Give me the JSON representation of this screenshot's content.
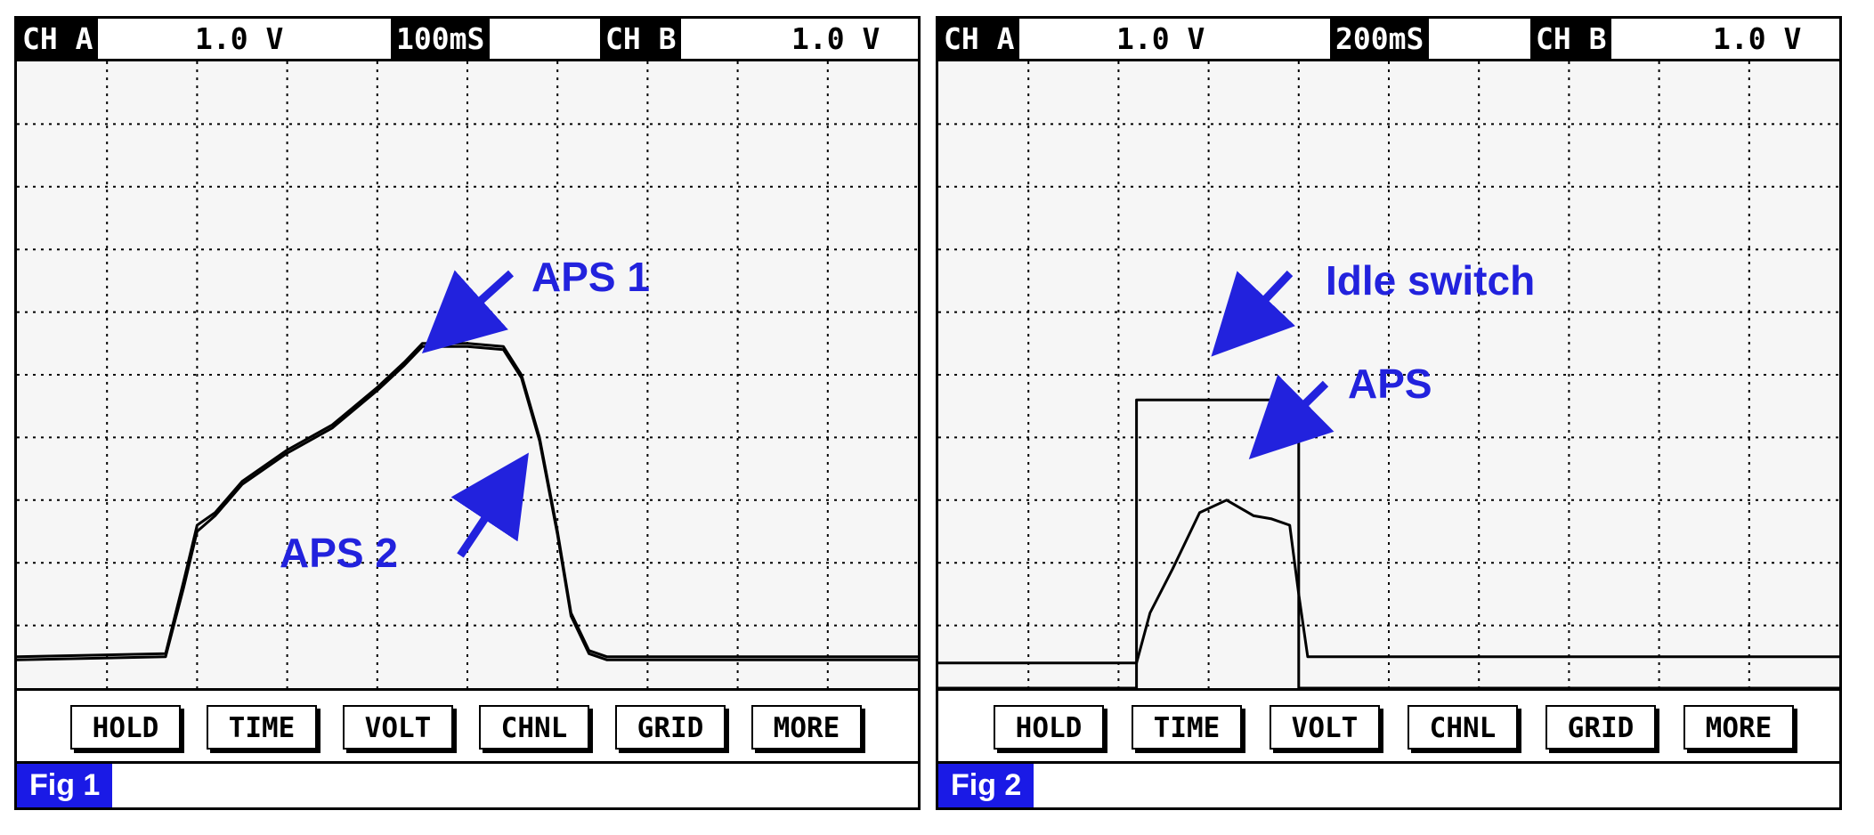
{
  "colors": {
    "annotation": "#2222dd",
    "trace": "#000000",
    "fig_label_bg": "#1a1ae6",
    "grid": "#000000"
  },
  "panels": [
    {
      "header": {
        "ch_a": "CH A",
        "ch_a_scale": "1.0 V",
        "timebase": "100mS",
        "ch_b": "CH B",
        "ch_b_scale": "1.0 V"
      },
      "buttons": [
        "HOLD",
        "TIME",
        "VOLT",
        "CHNL",
        "GRID",
        "MORE"
      ],
      "fig_label": "Fig 1",
      "annotations": {
        "a": "APS 1",
        "b": "APS 2"
      }
    },
    {
      "header": {
        "ch_a": "CH A",
        "ch_a_scale": "1.0 V",
        "timebase": "200mS",
        "ch_b": "CH B",
        "ch_b_scale": "1.0 V"
      },
      "buttons": [
        "HOLD",
        "TIME",
        "VOLT",
        "CHNL",
        "GRID",
        "MORE"
      ],
      "fig_label": "Fig 2",
      "annotations": {
        "a": "Idle switch",
        "b": "APS"
      }
    }
  ],
  "chart_data": [
    {
      "type": "line",
      "title": "",
      "grid": true,
      "xlim": [
        0,
        10
      ],
      "ylim": [
        0,
        10
      ],
      "x_unit": "div (100mS/div)",
      "y_unit": "div (1.0 V/div)",
      "series": [
        {
          "name": "APS 1",
          "x": [
            0,
            1.65,
            1.85,
            2.0,
            2.2,
            2.5,
            3.0,
            3.5,
            4.0,
            4.3,
            4.5,
            5.0,
            5.4,
            5.6,
            5.8,
            6.0,
            6.15,
            6.35,
            6.55,
            10
          ],
          "y": [
            0.5,
            0.55,
            1.7,
            2.6,
            2.8,
            3.3,
            3.8,
            4.2,
            4.8,
            5.2,
            5.5,
            5.5,
            5.45,
            5.0,
            4.0,
            2.5,
            1.2,
            0.6,
            0.5,
            0.5
          ]
        },
        {
          "name": "APS 2",
          "x": [
            0,
            1.65,
            1.85,
            2.0,
            2.2,
            2.5,
            3.0,
            3.5,
            4.0,
            4.3,
            4.5,
            5.0,
            5.4,
            5.6,
            5.8,
            6.0,
            6.15,
            6.35,
            6.55,
            10
          ],
          "y": [
            0.45,
            0.5,
            1.6,
            2.5,
            2.75,
            3.25,
            3.75,
            4.15,
            4.75,
            5.15,
            5.45,
            5.45,
            5.4,
            4.95,
            3.95,
            2.45,
            1.15,
            0.55,
            0.45,
            0.45
          ]
        }
      ]
    },
    {
      "type": "line",
      "title": "",
      "grid": true,
      "xlim": [
        0,
        10
      ],
      "ylim": [
        0,
        10
      ],
      "x_unit": "div (200mS/div)",
      "y_unit": "div (1.0 V/div)",
      "series": [
        {
          "name": "Idle switch",
          "x": [
            0,
            2.2,
            2.2,
            4.0,
            4.0,
            10
          ],
          "y": [
            0,
            0,
            4.6,
            4.6,
            0,
            0
          ]
        },
        {
          "name": "APS",
          "x": [
            0,
            2.2,
            2.35,
            2.6,
            2.9,
            3.2,
            3.5,
            3.7,
            3.9,
            4.0,
            4.1,
            10
          ],
          "y": [
            0.4,
            0.4,
            1.2,
            1.9,
            2.8,
            3.0,
            2.75,
            2.7,
            2.6,
            1.5,
            0.5,
            0.5
          ]
        }
      ]
    }
  ]
}
